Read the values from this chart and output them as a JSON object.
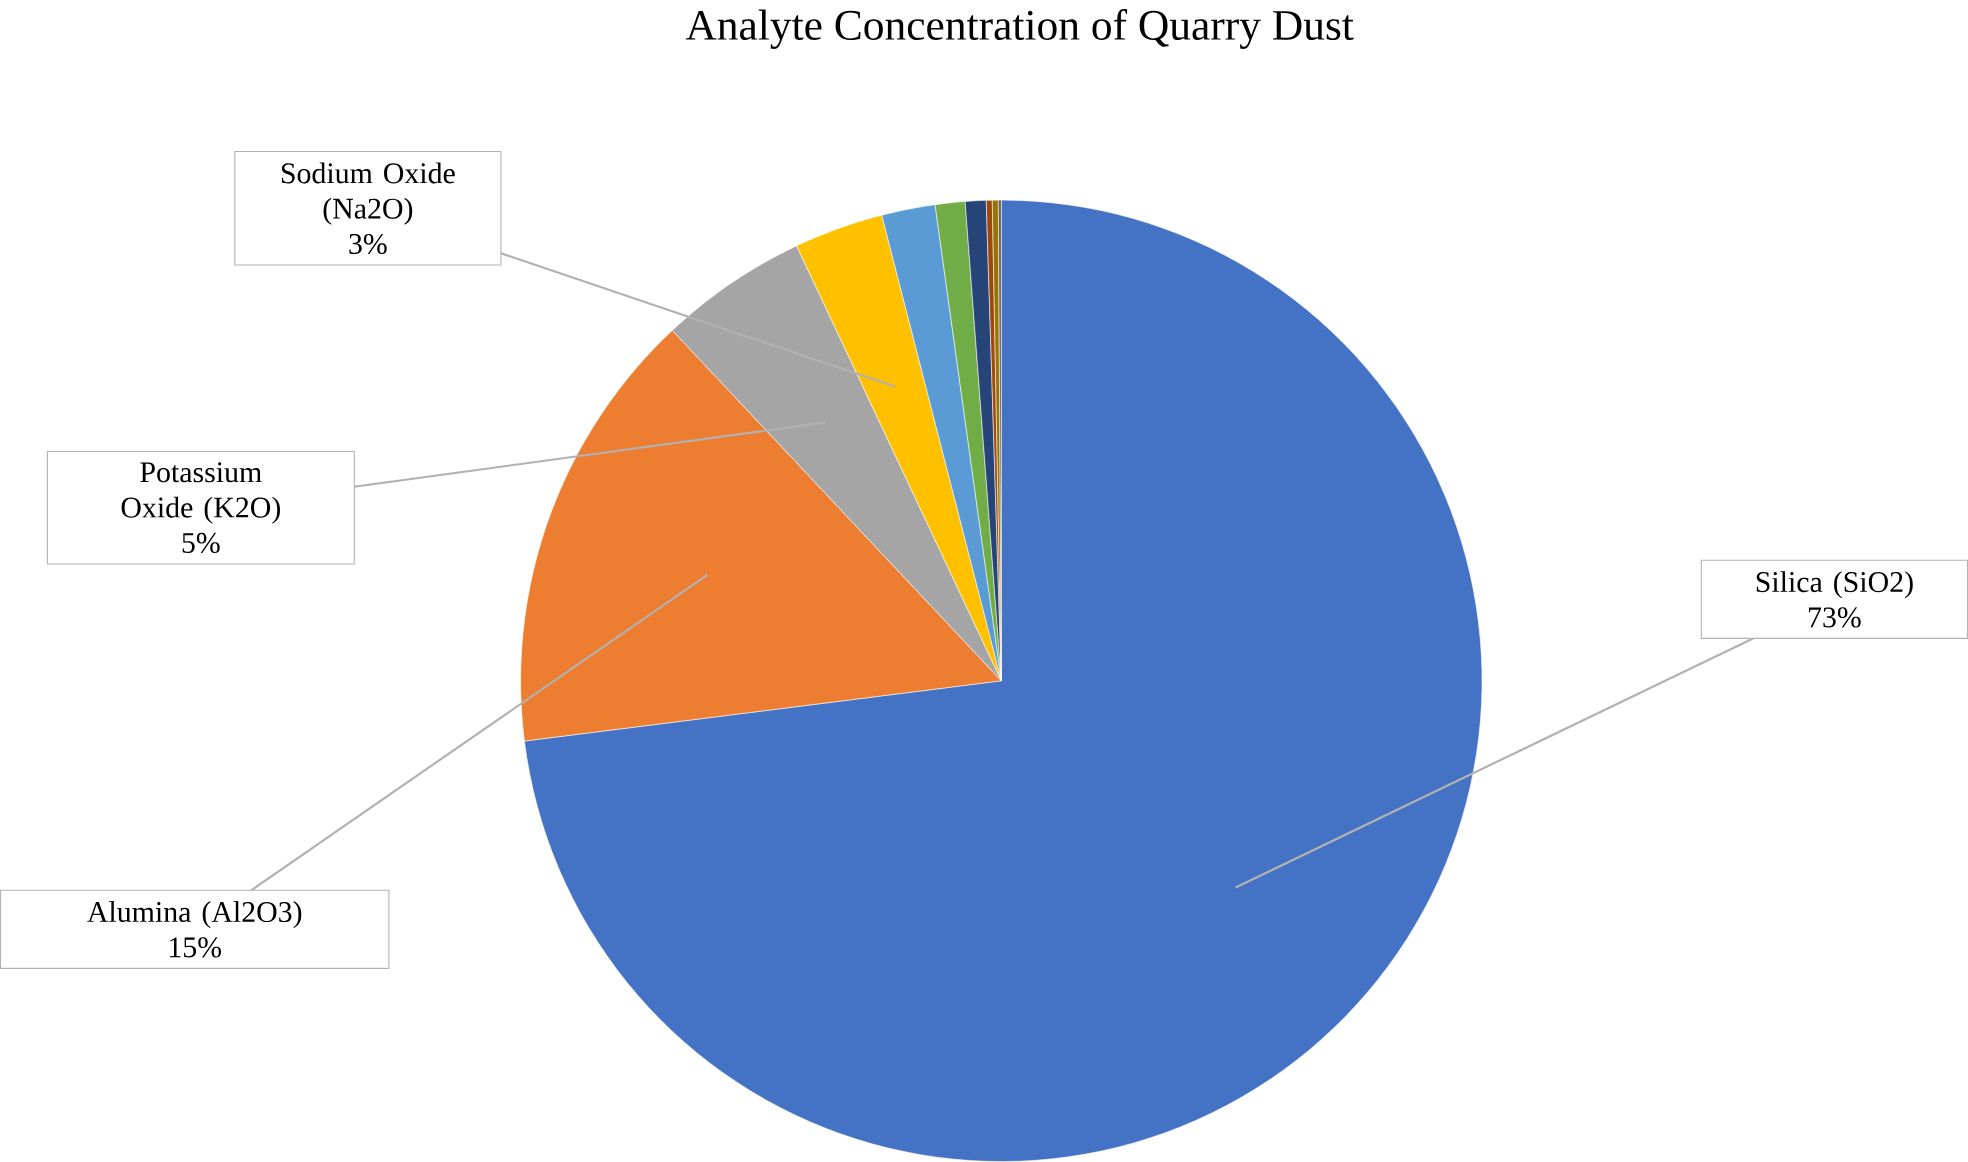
{
  "chart_data": {
    "type": "pie",
    "title": "Analyte Concentration of Quarry Dust",
    "categories": [
      "Silica (SiO2)",
      "Alumina (Al2O3)",
      "Potassium Oxide (K2O)",
      "Sodium Oxide (Na2O)",
      null,
      null,
      null,
      null,
      null,
      null
    ],
    "values": [
      73,
      15,
      5,
      3,
      1.8,
      1.0,
      0.7,
      0.2,
      0.2,
      0.1
    ],
    "value_labels": [
      "73%",
      "15%",
      "5%",
      "3%",
      null,
      null,
      null,
      null,
      null,
      null
    ],
    "colors": [
      "#4472c4",
      "#ed7d31",
      "#a5a5a5",
      "#ffc000",
      "#5b9bd5",
      "#70ad47",
      "#264478",
      "#9e480e",
      "#997300",
      "#636363"
    ]
  }
}
